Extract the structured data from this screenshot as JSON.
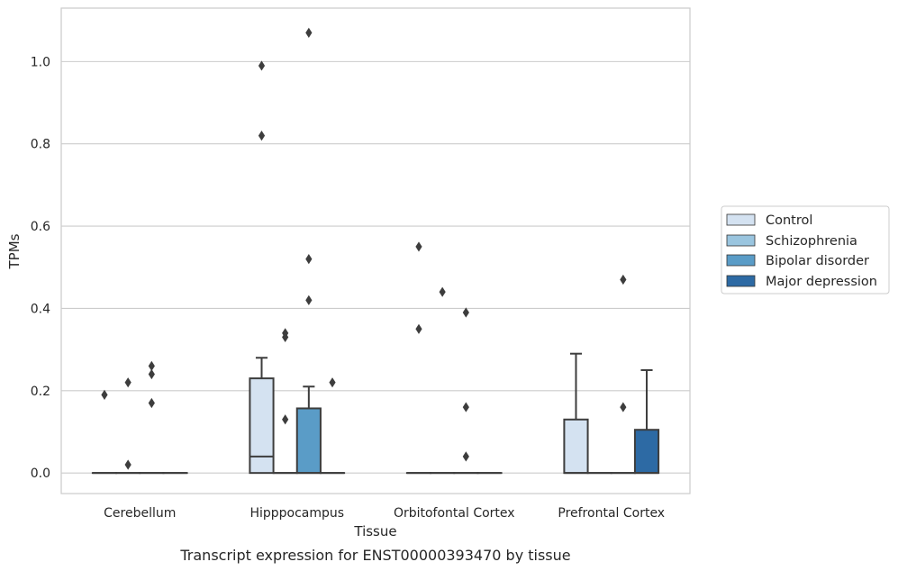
{
  "chart_data": {
    "type": "box",
    "caption": "Transcript expression for ENST00000393470 by tissue",
    "xlabel": "Tissue",
    "ylabel": "TPMs",
    "ylim": [
      -0.05,
      1.13
    ],
    "yticks": [
      0.0,
      0.2,
      0.4,
      0.6,
      0.8,
      1.0
    ],
    "ytick_labels": [
      "0.0",
      "0.2",
      "0.4",
      "0.6",
      "0.8",
      "1.0"
    ],
    "grid": "horizontal",
    "legend_position": "right",
    "categories": [
      "Cerebellum",
      "Hipppocampus",
      "Orbitofontal Cortex",
      "Prefrontal Cortex"
    ],
    "series": [
      {
        "name": "Control",
        "color": "#d4e2f1",
        "boxes": [
          {
            "q1": 0,
            "median": 0,
            "q3": 0,
            "whisker_low": 0,
            "whisker_high": 0,
            "outliers": [
              0.19
            ]
          },
          {
            "q1": 0,
            "median": 0.04,
            "q3": 0.23,
            "whisker_low": 0,
            "whisker_high": 0.28,
            "outliers": [
              0.82,
              0.99
            ]
          },
          {
            "q1": 0,
            "median": 0,
            "q3": 0,
            "whisker_low": 0,
            "whisker_high": 0,
            "outliers": [
              0.35,
              0.55
            ]
          },
          {
            "q1": 0,
            "median": 0,
            "q3": 0.13,
            "whisker_low": 0,
            "whisker_high": 0.29,
            "outliers": []
          }
        ]
      },
      {
        "name": "Schizophrenia",
        "color": "#9ac5df",
        "boxes": [
          {
            "q1": 0,
            "median": 0,
            "q3": 0,
            "whisker_low": 0,
            "whisker_high": 0,
            "outliers": [
              0.02,
              0.22
            ]
          },
          {
            "q1": 0,
            "median": 0,
            "q3": 0,
            "whisker_low": 0,
            "whisker_high": 0,
            "outliers": [
              0.13,
              0.33,
              0.34
            ]
          },
          {
            "q1": 0,
            "median": 0,
            "q3": 0,
            "whisker_low": 0,
            "whisker_high": 0,
            "outliers": [
              0.44
            ]
          },
          {
            "q1": 0,
            "median": 0,
            "q3": 0,
            "whisker_low": 0,
            "whisker_high": 0,
            "outliers": []
          }
        ]
      },
      {
        "name": "Bipolar disorder",
        "color": "#5a9cc7",
        "boxes": [
          {
            "q1": 0,
            "median": 0,
            "q3": 0,
            "whisker_low": 0,
            "whisker_high": 0,
            "outliers": [
              0.17,
              0.24,
              0.26
            ]
          },
          {
            "q1": 0,
            "median": 0,
            "q3": 0.157,
            "whisker_low": 0,
            "whisker_high": 0.21,
            "outliers": [
              0.42,
              0.52,
              1.07
            ]
          },
          {
            "q1": 0,
            "median": 0,
            "q3": 0,
            "whisker_low": 0,
            "whisker_high": 0,
            "outliers": [
              0.04,
              0.16,
              0.39
            ]
          },
          {
            "q1": 0,
            "median": 0,
            "q3": 0,
            "whisker_low": 0,
            "whisker_high": 0,
            "outliers": [
              0.16,
              0.47
            ]
          }
        ]
      },
      {
        "name": "Major depression",
        "color": "#2d6aa4",
        "boxes": [
          {
            "q1": 0,
            "median": 0,
            "q3": 0,
            "whisker_low": 0,
            "whisker_high": 0,
            "outliers": []
          },
          {
            "q1": 0,
            "median": 0,
            "q3": 0,
            "whisker_low": 0,
            "whisker_high": 0,
            "outliers": [
              0.22
            ]
          },
          {
            "q1": 0,
            "median": 0,
            "q3": 0,
            "whisker_low": 0,
            "whisker_high": 0,
            "outliers": []
          },
          {
            "q1": 0,
            "median": 0,
            "q3": 0.105,
            "whisker_low": 0,
            "whisker_high": 0.25,
            "outliers": []
          }
        ]
      }
    ]
  }
}
